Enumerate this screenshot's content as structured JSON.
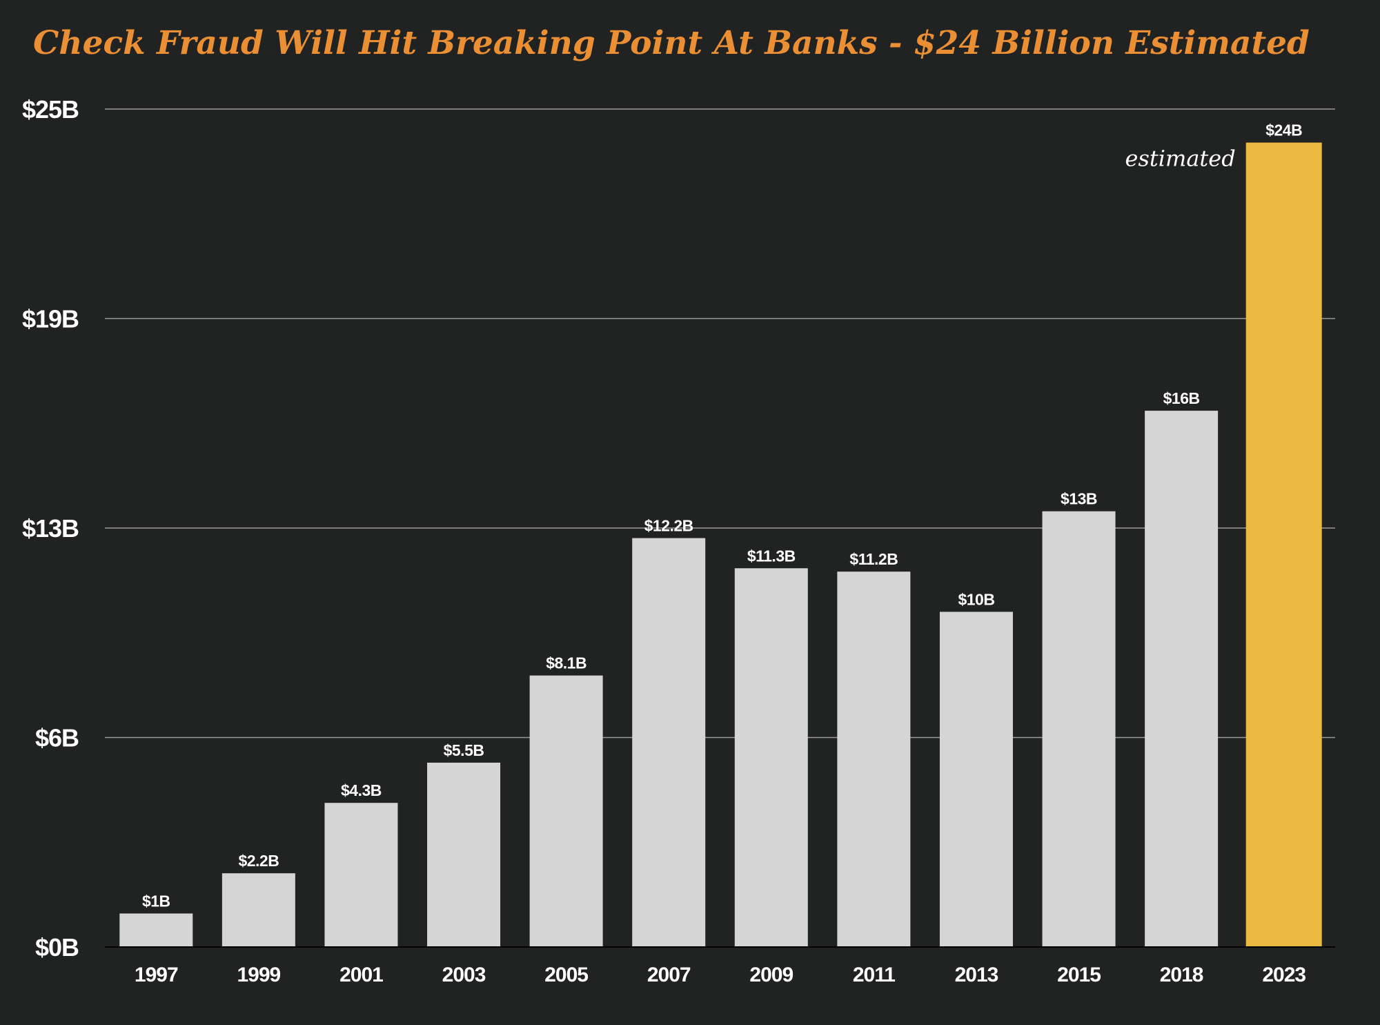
{
  "chart_data": {
    "type": "bar",
    "title": "Check Fraud Will Hit Breaking Point At Banks - $24 Billion Estimated",
    "xlabel": "",
    "ylabel": "",
    "categories": [
      "1997",
      "1999",
      "2001",
      "2003",
      "2005",
      "2007",
      "2009",
      "2011",
      "2013",
      "2015",
      "2018",
      "2023"
    ],
    "values": [
      1,
      2.2,
      4.3,
      5.5,
      8.1,
      12.2,
      11.3,
      11.2,
      10,
      13,
      16,
      24
    ],
    "data_labels": [
      "$1B",
      "$2.2B",
      "$4.3B",
      "$5.5B",
      "$8.1B",
      "$12.2B",
      "$11.3B",
      "$11.2B",
      "$10B",
      "$13B",
      "$16B",
      "$24B"
    ],
    "yticks": [
      0,
      6.25,
      12.5,
      18.75,
      25
    ],
    "ytick_labels": [
      "$0B",
      "$6B",
      "$13B",
      "$19B",
      "$25B"
    ],
    "ylim": [
      0,
      25
    ],
    "grid": true,
    "highlight_index": 11,
    "annotation": {
      "text": "estimated",
      "category": "2023"
    },
    "colors": {
      "background": "#212222",
      "bar": "#d5d5d5",
      "highlight": "#ecb940",
      "title": "#eb8f35",
      "gridline": "#9a9a9a",
      "text": "#ffffff"
    }
  }
}
